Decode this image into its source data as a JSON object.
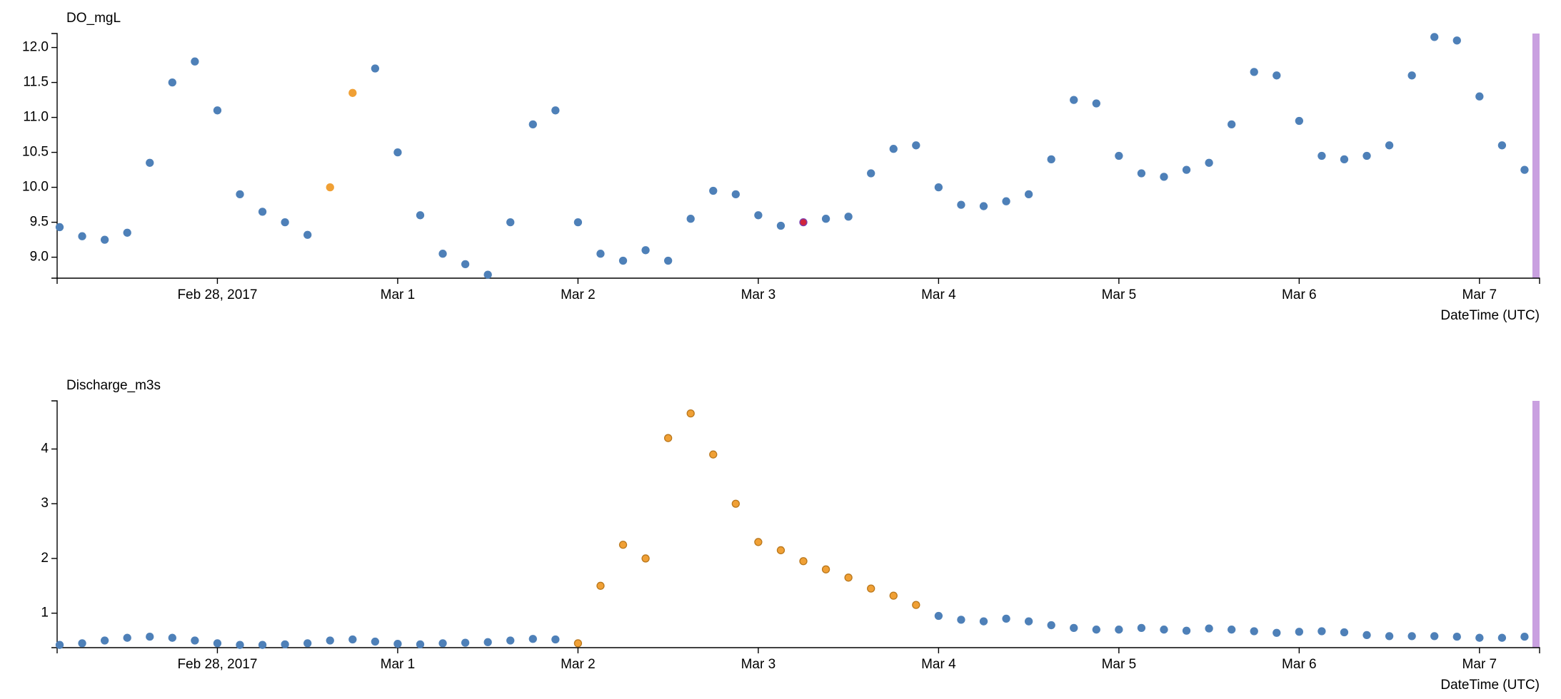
{
  "chart_data": [
    {
      "type": "scatter",
      "ylabel": "DO_mgL",
      "xlabel": "DateTime (UTC)",
      "x": [
        "2017-02-27T03:00",
        "2017-02-27T06:00",
        "2017-02-27T09:00",
        "2017-02-27T12:00",
        "2017-02-27T15:00",
        "2017-02-27T18:00",
        "2017-02-27T21:00",
        "2017-02-28T00:00",
        "2017-02-28T03:00",
        "2017-02-28T06:00",
        "2017-02-28T09:00",
        "2017-02-28T12:00",
        "2017-02-28T15:00",
        "2017-02-28T18:00",
        "2017-02-28T21:00",
        "2017-03-01T00:00",
        "2017-03-01T03:00",
        "2017-03-01T06:00",
        "2017-03-01T09:00",
        "2017-03-01T12:00",
        "2017-03-01T15:00",
        "2017-03-01T18:00",
        "2017-03-01T21:00",
        "2017-03-02T00:00",
        "2017-03-02T03:00",
        "2017-03-02T06:00",
        "2017-03-02T09:00",
        "2017-03-02T12:00",
        "2017-03-02T15:00",
        "2017-03-02T18:00",
        "2017-03-02T21:00",
        "2017-03-03T00:00",
        "2017-03-03T03:00",
        "2017-03-03T06:00",
        "2017-03-03T09:00",
        "2017-03-03T12:00",
        "2017-03-03T15:00",
        "2017-03-03T18:00",
        "2017-03-03T21:00",
        "2017-03-04T00:00",
        "2017-03-04T03:00",
        "2017-03-04T06:00",
        "2017-03-04T09:00",
        "2017-03-04T12:00",
        "2017-03-04T15:00",
        "2017-03-04T18:00",
        "2017-03-04T21:00",
        "2017-03-05T00:00",
        "2017-03-05T03:00",
        "2017-03-05T06:00",
        "2017-03-05T09:00",
        "2017-03-05T12:00",
        "2017-03-05T15:00",
        "2017-03-05T18:00",
        "2017-03-05T21:00",
        "2017-03-06T00:00",
        "2017-03-06T03:00",
        "2017-03-06T06:00",
        "2017-03-06T09:00",
        "2017-03-06T12:00",
        "2017-03-06T15:00",
        "2017-03-06T18:00",
        "2017-03-06T21:00",
        "2017-03-07T00:00",
        "2017-03-07T03:00",
        "2017-03-07T06:00"
      ],
      "series": [
        {
          "color": "#4e80b8",
          "edgecolor": "#4e80b8",
          "values": [
            9.43,
            9.3,
            9.25,
            9.35,
            10.35,
            11.5,
            11.8,
            11.1,
            9.9,
            9.65,
            9.5,
            9.32,
            null,
            null,
            11.7,
            10.5,
            9.6,
            9.05,
            8.9,
            8.75,
            9.5,
            10.9,
            11.1,
            9.5,
            9.05,
            8.95,
            9.1,
            8.95,
            9.55,
            9.95,
            9.9,
            9.6,
            9.45,
            null,
            9.55,
            9.58,
            10.2,
            10.55,
            10.6,
            10.0,
            9.75,
            9.73,
            9.8,
            9.9,
            10.4,
            11.25,
            11.2,
            10.45,
            10.2,
            10.15,
            10.25,
            10.35,
            10.9,
            11.65,
            11.6,
            10.95,
            10.45,
            10.4,
            10.45,
            10.6,
            11.6,
            12.15,
            12.1,
            11.3,
            10.6,
            10.25
          ]
        },
        {
          "color": "#f0a035",
          "edgecolor": "#f0a035",
          "values": [
            null,
            null,
            null,
            null,
            null,
            null,
            null,
            null,
            null,
            null,
            null,
            null,
            10.0,
            11.35,
            null,
            null,
            null,
            null,
            null,
            null,
            null,
            null,
            null,
            null,
            null,
            null,
            null,
            null,
            null,
            null,
            null,
            null,
            null,
            null,
            null,
            null,
            null,
            null,
            null,
            null,
            null,
            null,
            null,
            null,
            null,
            null,
            null,
            null,
            null,
            null,
            null,
            null,
            null,
            null,
            null,
            null,
            null,
            null,
            null,
            null,
            null,
            null,
            null,
            null,
            null,
            null
          ]
        },
        {
          "color": "#d0243c",
          "edgecolor": "#7a3fb0",
          "values": [
            null,
            null,
            null,
            null,
            null,
            null,
            null,
            null,
            null,
            null,
            null,
            null,
            null,
            null,
            null,
            null,
            null,
            null,
            null,
            null,
            null,
            null,
            null,
            null,
            null,
            null,
            null,
            null,
            null,
            null,
            null,
            null,
            null,
            9.5,
            null,
            null,
            null,
            null,
            null,
            null,
            null,
            null,
            null,
            null,
            null,
            null,
            null,
            null,
            null,
            null,
            null,
            null,
            null,
            null,
            null,
            null,
            null,
            null,
            null,
            null,
            null,
            null,
            null,
            null,
            null,
            null
          ]
        }
      ],
      "xlim": [
        "2017-02-27T02:40",
        "2017-03-07T08:00"
      ],
      "xticks": [
        {
          "value": "2017-02-28T00:00",
          "label": "Feb 28, 2017"
        },
        {
          "value": "2017-03-01T00:00",
          "label": "Mar 1"
        },
        {
          "value": "2017-03-02T00:00",
          "label": "Mar 2"
        },
        {
          "value": "2017-03-03T00:00",
          "label": "Mar 3"
        },
        {
          "value": "2017-03-04T00:00",
          "label": "Mar 4"
        },
        {
          "value": "2017-03-05T00:00",
          "label": "Mar 5"
        },
        {
          "value": "2017-03-06T00:00",
          "label": "Mar 6"
        },
        {
          "value": "2017-03-07T00:00",
          "label": "Mar 7"
        }
      ],
      "ylim": [
        8.7,
        12.2
      ],
      "yticks": [
        {
          "value": 9,
          "label": "9.0"
        },
        9.5,
        {
          "value": 10,
          "label": "10.0"
        },
        10.5,
        {
          "value": 11,
          "label": "11.0"
        },
        11.5,
        {
          "value": 12,
          "label": "12.0"
        }
      ],
      "grid": false
    },
    {
      "type": "scatter",
      "ylabel": "Discharge_m3s",
      "xlabel": "DateTime (UTC)",
      "x": [
        "2017-02-27T03:00",
        "2017-02-27T06:00",
        "2017-02-27T09:00",
        "2017-02-27T12:00",
        "2017-02-27T15:00",
        "2017-02-27T18:00",
        "2017-02-27T21:00",
        "2017-02-28T00:00",
        "2017-02-28T03:00",
        "2017-02-28T06:00",
        "2017-02-28T09:00",
        "2017-02-28T12:00",
        "2017-02-28T15:00",
        "2017-02-28T18:00",
        "2017-02-28T21:00",
        "2017-03-01T00:00",
        "2017-03-01T03:00",
        "2017-03-01T06:00",
        "2017-03-01T09:00",
        "2017-03-01T12:00",
        "2017-03-01T15:00",
        "2017-03-01T18:00",
        "2017-03-01T21:00",
        "2017-03-02T00:00",
        "2017-03-02T03:00",
        "2017-03-02T06:00",
        "2017-03-02T09:00",
        "2017-03-02T12:00",
        "2017-03-02T15:00",
        "2017-03-02T18:00",
        "2017-03-02T21:00",
        "2017-03-03T00:00",
        "2017-03-03T03:00",
        "2017-03-03T06:00",
        "2017-03-03T09:00",
        "2017-03-03T12:00",
        "2017-03-03T15:00",
        "2017-03-03T18:00",
        "2017-03-03T21:00",
        "2017-03-04T00:00",
        "2017-03-04T03:00",
        "2017-03-04T06:00",
        "2017-03-04T09:00",
        "2017-03-04T12:00",
        "2017-03-04T15:00",
        "2017-03-04T18:00",
        "2017-03-04T21:00",
        "2017-03-05T00:00",
        "2017-03-05T03:00",
        "2017-03-05T06:00",
        "2017-03-05T09:00",
        "2017-03-05T12:00",
        "2017-03-05T15:00",
        "2017-03-05T18:00",
        "2017-03-05T21:00",
        "2017-03-06T00:00",
        "2017-03-06T03:00",
        "2017-03-06T06:00",
        "2017-03-06T09:00",
        "2017-03-06T12:00",
        "2017-03-06T15:00",
        "2017-03-06T18:00",
        "2017-03-06T21:00",
        "2017-03-07T00:00",
        "2017-03-07T03:00",
        "2017-03-07T06:00"
      ],
      "series": [
        {
          "color": "#4e80b8",
          "edgecolor": "#4e80b8",
          "values": [
            0.42,
            0.45,
            0.5,
            0.55,
            0.57,
            0.55,
            0.5,
            0.45,
            0.42,
            0.42,
            0.43,
            0.45,
            0.5,
            0.52,
            0.48,
            0.44,
            0.43,
            0.45,
            0.46,
            0.47,
            0.5,
            0.53,
            0.52,
            null,
            null,
            null,
            null,
            null,
            null,
            null,
            null,
            null,
            null,
            null,
            null,
            null,
            null,
            null,
            null,
            0.95,
            0.88,
            0.85,
            0.9,
            0.85,
            0.78,
            0.73,
            0.7,
            0.7,
            0.73,
            0.7,
            0.68,
            0.72,
            0.7,
            0.67,
            0.64,
            0.66,
            0.67,
            0.65,
            0.6,
            0.58,
            0.58,
            0.58,
            0.57,
            0.55,
            0.55,
            0.57
          ]
        },
        {
          "color": "#f0a035",
          "edgecolor": "#b9771c",
          "values": [
            null,
            null,
            null,
            null,
            null,
            null,
            null,
            null,
            null,
            null,
            null,
            null,
            null,
            null,
            null,
            null,
            null,
            null,
            null,
            null,
            null,
            null,
            null,
            0.45,
            1.5,
            2.25,
            2.0,
            4.2,
            4.65,
            3.9,
            3.0,
            2.3,
            2.15,
            1.95,
            1.8,
            1.65,
            1.45,
            1.32,
            1.15,
            null,
            null,
            null,
            null,
            null,
            null,
            null,
            null,
            null,
            null,
            null,
            null,
            null,
            null,
            null,
            null,
            null,
            null,
            null,
            null,
            null,
            null,
            null,
            null,
            null,
            null,
            null
          ]
        }
      ],
      "xlim": [
        "2017-02-27T02:40",
        "2017-03-07T08:00"
      ],
      "xticks": [
        {
          "value": "2017-02-28T00:00",
          "label": "Feb 28, 2017"
        },
        {
          "value": "2017-03-01T00:00",
          "label": "Mar 1"
        },
        {
          "value": "2017-03-02T00:00",
          "label": "Mar 2"
        },
        {
          "value": "2017-03-03T00:00",
          "label": "Mar 3"
        },
        {
          "value": "2017-03-04T00:00",
          "label": "Mar 4"
        },
        {
          "value": "2017-03-05T00:00",
          "label": "Mar 5"
        },
        {
          "value": "2017-03-06T00:00",
          "label": "Mar 6"
        },
        {
          "value": "2017-03-07T00:00",
          "label": "Mar 7"
        }
      ],
      "ylim": [
        0.37,
        4.88
      ],
      "yticks": [
        1,
        2,
        3,
        4
      ],
      "grid": false
    }
  ]
}
